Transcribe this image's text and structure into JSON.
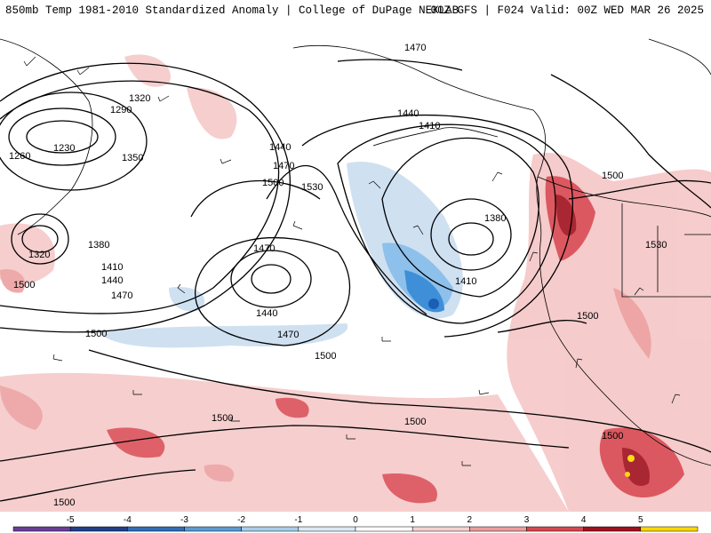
{
  "header": {
    "title_left": "850mb Temp 1981-2010 Standardized Anomaly | College of DuPage NEXLAB",
    "title_right": "00Z GFS | F024 Valid: 00Z WED MAR 26 2025"
  },
  "map": {
    "height_contour_labels": [
      "1470",
      "1440",
      "1410",
      "1380",
      "1320",
      "1290",
      "1230",
      "1260",
      "1350",
      "1440",
      "1470",
      "1500",
      "1530",
      "1380",
      "1410",
      "1440",
      "1470",
      "1320",
      "1470",
      "1440",
      "1470",
      "1500",
      "1500",
      "1410",
      "1500",
      "1500",
      "1530",
      "1500",
      "1500",
      "1500",
      "1500",
      "1500"
    ],
    "colors": {
      "land": "#f0d3d3",
      "ocean": "#ffffff",
      "coast": "#000000",
      "contour": "#000000",
      "cold_light": "#cfe0f1",
      "cold_mid": "#8dc0ea",
      "cold_strong": "#3e8fd8",
      "cold_core": "#1a5fb4",
      "warm_light": "#f5c6c6",
      "warm_mid": "#e88c8c",
      "warm_strong": "#d9464f",
      "warm_core": "#a0101c",
      "extreme": "#ffd700"
    }
  },
  "colorbar": {
    "tick_labels": [
      "-5",
      "-4",
      "-3",
      "-2",
      "-1",
      "0",
      "1",
      "2",
      "3",
      "4",
      "5"
    ],
    "colors": [
      "#6a3d9a",
      "#1f3f8c",
      "#2f6db8",
      "#5b9bd5",
      "#a9cdeb",
      "#dbe9f6",
      "#ffffff",
      "#f6d1d1",
      "#ec9c9c",
      "#d9464f",
      "#a0101c",
      "#ffd700"
    ]
  }
}
